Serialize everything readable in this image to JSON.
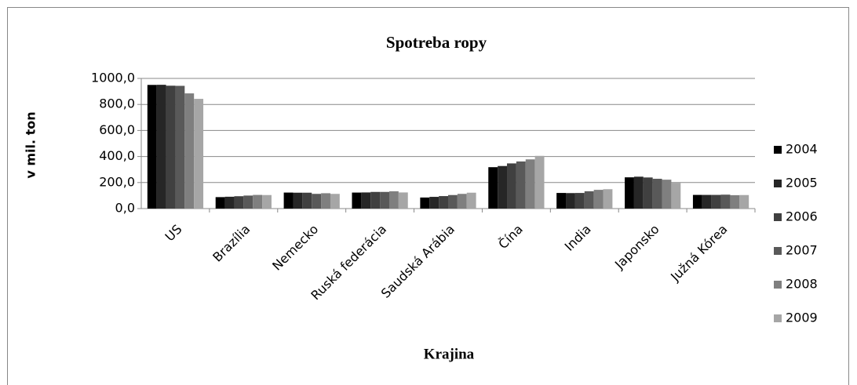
{
  "chart_data": {
    "type": "bar",
    "title": "Spotreba ropy",
    "x_label": "Krajina",
    "y_label": "v mil. ton",
    "categories": [
      "US",
      "Brazília",
      "Nemecko",
      "Ruská federácia",
      "Saudská Arábia",
      "Čína",
      "India",
      "Japonsko",
      "Južná Kórea"
    ],
    "series": [
      {
        "name": "2004",
        "color": "#000000",
        "values": [
          950,
          88,
          123,
          123,
          85,
          318,
          120,
          240,
          105
        ]
      },
      {
        "name": "2005",
        "color": "#262626",
        "values": [
          951,
          91,
          122,
          124,
          90,
          327,
          119,
          245,
          105
        ]
      },
      {
        "name": "2006",
        "color": "#404040",
        "values": [
          944,
          95,
          122,
          128,
          96,
          347,
          120,
          239,
          105
        ]
      },
      {
        "name": "2007",
        "color": "#595959",
        "values": [
          943,
          100,
          113,
          128,
          104,
          362,
          133,
          229,
          107
        ]
      },
      {
        "name": "2008",
        "color": "#7f7f7f",
        "values": [
          885,
          105,
          118,
          133,
          113,
          378,
          144,
          222,
          103
        ]
      },
      {
        "name": "2009",
        "color": "#a6a6a6",
        "values": [
          843,
          104,
          113,
          124,
          122,
          405,
          149,
          198,
          104
        ]
      }
    ],
    "ylim": [
      0,
      1000
    ],
    "yticks": [
      {
        "value": 0,
        "label": "0,0"
      },
      {
        "value": 200,
        "label": "200,0"
      },
      {
        "value": 400,
        "label": "400,0"
      },
      {
        "value": 600,
        "label": "600,0"
      },
      {
        "value": 800,
        "label": "800,0"
      },
      {
        "value": 1000,
        "label": "1000,0"
      }
    ],
    "grid": true,
    "legend": "right"
  }
}
